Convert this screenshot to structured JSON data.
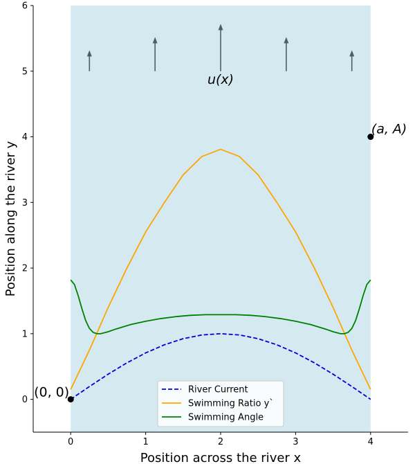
{
  "chart_data": {
    "type": "line",
    "title": "",
    "xlabel": "Position across the river x",
    "ylabel": "Position along the river y",
    "xlim": [
      -0.5,
      4.5
    ],
    "ylim": [
      -0.5,
      6
    ],
    "x_ticks": [
      0,
      1,
      2,
      3,
      4
    ],
    "y_ticks": [
      0,
      1,
      2,
      3,
      4,
      5,
      6
    ],
    "x_tick_labels": [
      "0",
      "1",
      "2",
      "3",
      "4"
    ],
    "y_tick_labels": [
      "0",
      "1",
      "2",
      "3",
      "4",
      "5",
      "6"
    ],
    "river_band": {
      "x_range": [
        0,
        4
      ],
      "color": "#d4eaf0"
    },
    "series": [
      {
        "name": "River Current",
        "style": "dashed",
        "color": "#0000dd",
        "x": [
          0,
          0.25,
          0.5,
          0.75,
          1,
          1.25,
          1.5,
          1.75,
          2,
          2.25,
          2.5,
          2.75,
          3,
          3.25,
          3.5,
          3.75,
          4
        ],
        "values": [
          0,
          0.195,
          0.383,
          0.556,
          0.707,
          0.831,
          0.924,
          0.981,
          1.0,
          0.981,
          0.924,
          0.831,
          0.707,
          0.556,
          0.383,
          0.195,
          0
        ]
      },
      {
        "name": "Swimming Ratio y`",
        "style": "solid",
        "color": "#ffa500",
        "x": [
          0,
          0.25,
          0.5,
          0.75,
          1,
          1.25,
          1.5,
          1.75,
          2,
          2.25,
          2.5,
          2.75,
          3,
          3.25,
          3.5,
          3.75,
          4
        ],
        "values": [
          0.15,
          0.75,
          1.4,
          2.0,
          2.55,
          3.0,
          3.42,
          3.7,
          3.81,
          3.7,
          3.42,
          3.0,
          2.55,
          2.0,
          1.4,
          0.75,
          0.15
        ]
      },
      {
        "name": "Swimming Angle",
        "style": "solid",
        "color": "#008000",
        "x": [
          0,
          0.05,
          0.1,
          0.15,
          0.2,
          0.25,
          0.3,
          0.35,
          0.4,
          0.5,
          0.6,
          0.8,
          1.0,
          1.2,
          1.4,
          1.6,
          1.8,
          2.0,
          2.2,
          2.4,
          2.6,
          2.8,
          3.0,
          3.2,
          3.4,
          3.5,
          3.6,
          3.65,
          3.7,
          3.75,
          3.8,
          3.85,
          3.9,
          3.95,
          4.0
        ],
        "values": [
          1.82,
          1.75,
          1.58,
          1.38,
          1.2,
          1.08,
          1.02,
          1.0,
          1.0,
          1.03,
          1.07,
          1.14,
          1.19,
          1.23,
          1.26,
          1.28,
          1.29,
          1.29,
          1.29,
          1.28,
          1.26,
          1.23,
          1.19,
          1.14,
          1.07,
          1.03,
          1.0,
          1.0,
          1.02,
          1.08,
          1.2,
          1.38,
          1.58,
          1.75,
          1.82
        ]
      }
    ],
    "points": [
      {
        "label": "(0, 0)",
        "x": 0,
        "y": 0
      },
      {
        "label": "(a, A)",
        "x": 4,
        "y": 4
      }
    ],
    "current_arrows": [
      {
        "x": 0.25,
        "y_start": 5.0,
        "y_end": 5.32
      },
      {
        "x": 1.125,
        "y_start": 5.0,
        "y_end": 5.52
      },
      {
        "x": 2.0,
        "y_start": 5.0,
        "y_end": 5.72
      },
      {
        "x": 2.875,
        "y_start": 5.0,
        "y_end": 5.52
      },
      {
        "x": 3.75,
        "y_start": 5.0,
        "y_end": 5.32
      }
    ],
    "arrow_color": "#4a6068",
    "annotation": {
      "text": "u(x)",
      "x": 2.0,
      "y": 4.87
    },
    "legend": {
      "position": "bottom-center",
      "entries": [
        "River Current",
        "Swimming Ratio y`",
        "Swimming Angle"
      ]
    }
  }
}
